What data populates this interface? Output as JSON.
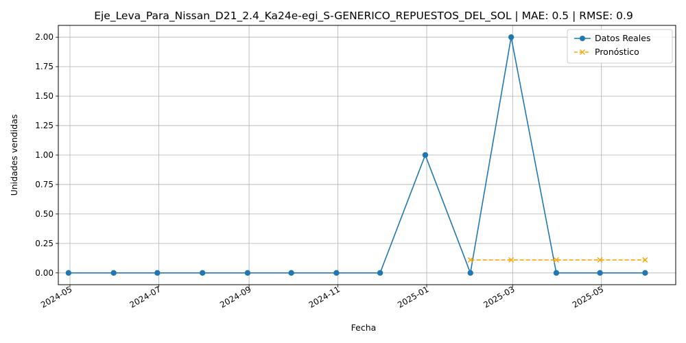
{
  "chart_data": {
    "type": "line",
    "title": "Eje_Leva_Para_Nissan_D21_2.4_Ka24e-egi_S-GENERICO_REPUESTOS_DEL_SOL | MAE: 0.5 | RMSE: 0.9",
    "xlabel": "Fecha",
    "ylabel": "Unidades vendidas",
    "ylim": [
      -0.1,
      2.1
    ],
    "xlim": [
      "2024-04-23",
      "2025-06-21"
    ],
    "grid": true,
    "legend_position": "top-right",
    "x_ticks": [
      "2024-05-01",
      "2024-07-01",
      "2024-09-01",
      "2024-11-01",
      "2025-01-01",
      "2025-03-01",
      "2025-05-01"
    ],
    "x_tick_labels": [
      "2024-05",
      "2024-07",
      "2024-09",
      "2024-11",
      "2025-01",
      "2025-03",
      "2025-05"
    ],
    "y_ticks": [
      0.0,
      0.25,
      0.5,
      0.75,
      1.0,
      1.25,
      1.5,
      1.75,
      2.0
    ],
    "y_tick_labels": [
      "0.00",
      "0.25",
      "0.50",
      "0.75",
      "1.00",
      "1.25",
      "1.50",
      "1.75",
      "2.00"
    ],
    "series": [
      {
        "name": "Datos Reales",
        "color": "#1f77b4",
        "marker": "circle",
        "line_style": "solid",
        "x": [
          "2024-04-30",
          "2024-05-31",
          "2024-06-30",
          "2024-07-31",
          "2024-08-31",
          "2024-09-30",
          "2024-10-31",
          "2024-11-30",
          "2024-12-31",
          "2025-01-31",
          "2025-02-28",
          "2025-03-31",
          "2025-04-30",
          "2025-05-31"
        ],
        "y": [
          0,
          0,
          0,
          0,
          0,
          0,
          0,
          0,
          1,
          0,
          2,
          0,
          0,
          0
        ]
      },
      {
        "name": "Pronóstico",
        "color": "#ffa500",
        "marker": "x",
        "line_style": "dashed",
        "x": [
          "2025-01-31",
          "2025-02-28",
          "2025-03-31",
          "2025-04-30",
          "2025-05-31"
        ],
        "y": [
          0.11,
          0.11,
          0.11,
          0.11,
          0.11
        ]
      }
    ]
  }
}
